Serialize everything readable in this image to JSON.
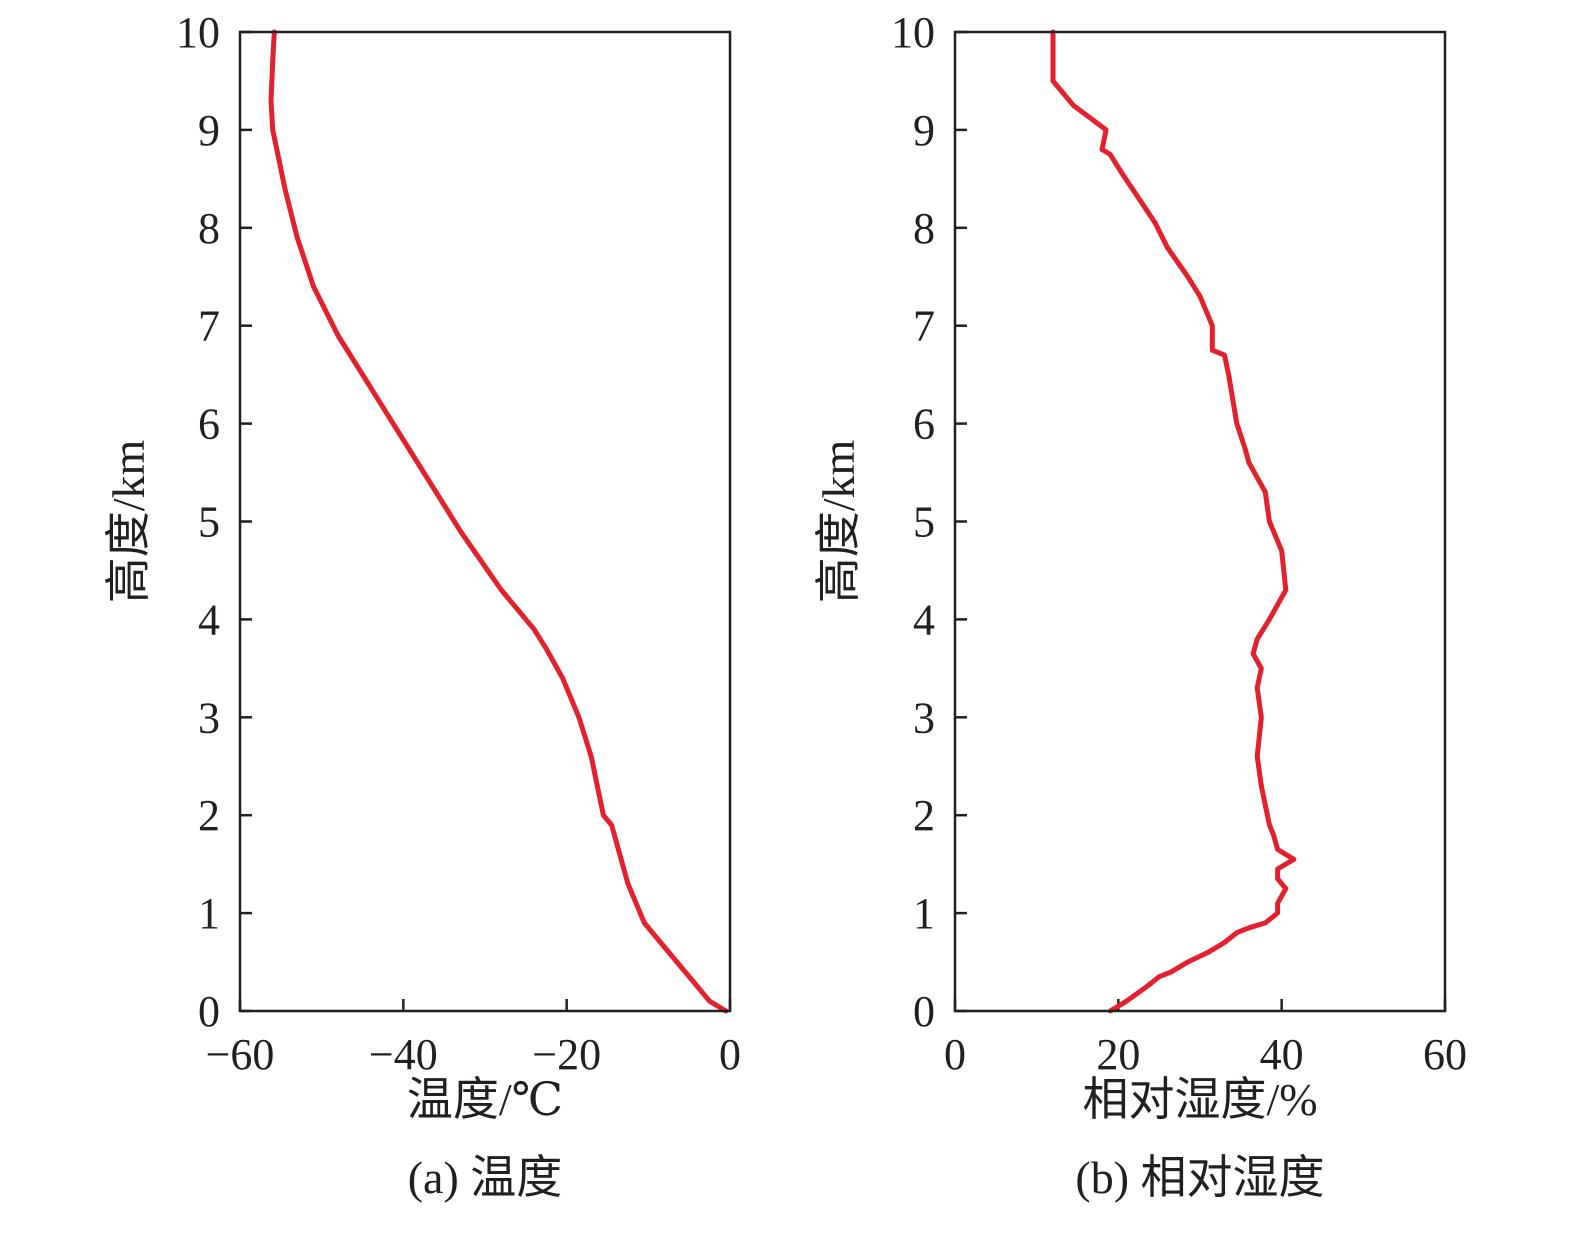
{
  "colors": {
    "series": "#e3202b",
    "axis": "#231f20"
  },
  "chart_data": [
    {
      "type": "line",
      "caption": "(a) 温度",
      "xlabel": "温度/℃",
      "ylabel": "高度/km",
      "xlim": [
        -60,
        0
      ],
      "ylim": [
        0,
        10
      ],
      "xticks": [
        -60,
        -40,
        -20,
        0
      ],
      "xtick_labels": [
        "−60",
        "−40",
        "−20",
        "0"
      ],
      "yticks": [
        0,
        1,
        2,
        3,
        4,
        5,
        6,
        7,
        8,
        9,
        10
      ],
      "ytick_labels": [
        "0",
        "1",
        "2",
        "3",
        "4",
        "5",
        "6",
        "7",
        "8",
        "9",
        "10"
      ],
      "grid": false,
      "series": [
        {
          "x": [
            -0.5,
            -2.5,
            -4.5,
            -6.5,
            -8.5,
            -10.5,
            -11.5,
            -12.5,
            -13.5,
            -14.5,
            -15.5,
            -16.0,
            -17.0,
            -18.5,
            -20.5,
            -22.5,
            -24.0,
            -26.0,
            -28.0,
            -30.5,
            -33.0,
            -36.0,
            -39.0,
            -42.0,
            -45.0,
            -48.0,
            -51.0,
            -53.0,
            -54.5,
            -55.5,
            -56.0,
            -56.2,
            -56.0,
            -55.8
          ],
          "y": [
            0.0,
            0.1,
            0.3,
            0.5,
            0.7,
            0.9,
            1.1,
            1.3,
            1.6,
            1.9,
            2.0,
            2.2,
            2.6,
            3.0,
            3.4,
            3.7,
            3.9,
            4.1,
            4.3,
            4.6,
            4.9,
            5.3,
            5.7,
            6.1,
            6.5,
            6.9,
            7.4,
            7.9,
            8.4,
            8.8,
            9.0,
            9.3,
            9.7,
            10.0
          ]
        }
      ]
    },
    {
      "type": "line",
      "caption": "(b) 相对湿度",
      "xlabel": "相对湿度/%",
      "ylabel": "高度/km",
      "xlim": [
        0,
        60
      ],
      "ylim": [
        0,
        10
      ],
      "xticks": [
        0,
        20,
        40,
        60
      ],
      "xtick_labels": [
        "0",
        "20",
        "40",
        "60"
      ],
      "yticks": [
        0,
        1,
        2,
        3,
        4,
        5,
        6,
        7,
        8,
        9,
        10
      ],
      "ytick_labels": [
        "0",
        "1",
        "2",
        "3",
        "4",
        "5",
        "6",
        "7",
        "8",
        "9",
        "10"
      ],
      "grid": false,
      "series": [
        {
          "x": [
            19.0,
            21.0,
            23.5,
            25.0,
            26.5,
            28.5,
            31.0,
            33.0,
            34.5,
            36.0,
            38.0,
            39.5,
            39.5,
            40.5,
            39.5,
            39.5,
            41.5,
            39.5,
            39.0,
            38.5,
            37.5,
            37.0,
            37.5,
            37.0,
            37.5,
            36.5,
            37.0,
            38.5,
            40.5,
            40.0,
            38.5,
            38.0,
            36.0,
            35.5,
            34.5,
            34.0,
            33.5,
            33.0,
            31.5,
            31.5,
            30.0,
            28.5,
            26.0,
            24.5,
            22.5,
            20.5,
            19.0,
            18.0,
            18.5,
            14.5,
            12.0,
            12.0
          ],
          "y": [
            0.0,
            0.1,
            0.25,
            0.35,
            0.4,
            0.5,
            0.6,
            0.7,
            0.8,
            0.85,
            0.9,
            1.0,
            1.1,
            1.25,
            1.35,
            1.45,
            1.55,
            1.65,
            1.8,
            1.9,
            2.3,
            2.6,
            3.0,
            3.3,
            3.5,
            3.65,
            3.8,
            4.0,
            4.3,
            4.7,
            5.0,
            5.3,
            5.6,
            5.75,
            6.0,
            6.25,
            6.5,
            6.7,
            6.75,
            7.0,
            7.3,
            7.5,
            7.8,
            8.05,
            8.3,
            8.55,
            8.75,
            8.8,
            9.0,
            9.25,
            9.5,
            10.0
          ]
        }
      ]
    }
  ]
}
